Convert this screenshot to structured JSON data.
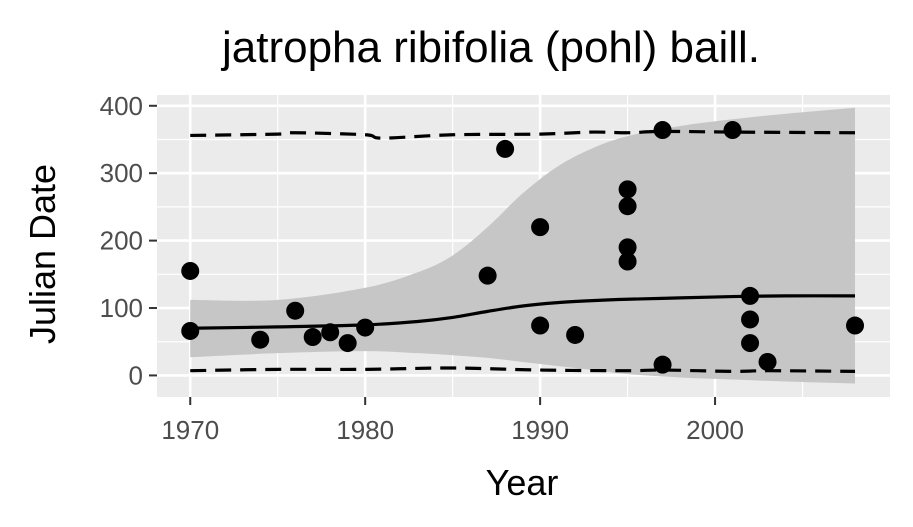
{
  "chart_data": {
    "type": "scatter",
    "title": "jatropha ribifolia (pohl) baill.",
    "xlabel": "Year",
    "ylabel": "Julian Date",
    "xlim": [
      1968.1,
      2010
    ],
    "ylim": [
      -32,
      416
    ],
    "x_ticks": [
      1970,
      1980,
      1990,
      2000
    ],
    "x_tick_labels": [
      "1970",
      "1980",
      "1990",
      "2000"
    ],
    "x_minor_ticks": [
      1975,
      1985,
      1995,
      2005
    ],
    "y_ticks": [
      0,
      100,
      200,
      300,
      400
    ],
    "y_tick_labels": [
      "0",
      "100",
      "200",
      "300",
      "400"
    ],
    "y_minor_ticks": [
      50,
      150,
      250,
      350
    ],
    "grid": true,
    "legend": "none",
    "colors": {
      "panel_background": "#ebebeb",
      "grid": "#ffffff",
      "points": "#000000",
      "fit_line": "#000000",
      "ribbon": "#c6c6c6",
      "tick_label": "#4d4d4d",
      "tick_mark": "#333333"
    },
    "points": [
      {
        "x": 1970,
        "y": 155
      },
      {
        "x": 1970,
        "y": 66
      },
      {
        "x": 1974,
        "y": 53
      },
      {
        "x": 1976,
        "y": 96
      },
      {
        "x": 1977,
        "y": 57
      },
      {
        "x": 1978,
        "y": 64
      },
      {
        "x": 1979,
        "y": 48
      },
      {
        "x": 1980,
        "y": 71
      },
      {
        "x": 1987,
        "y": 148
      },
      {
        "x": 1988,
        "y": 336
      },
      {
        "x": 1990,
        "y": 220
      },
      {
        "x": 1990,
        "y": 74
      },
      {
        "x": 1992,
        "y": 60
      },
      {
        "x": 1995,
        "y": 276
      },
      {
        "x": 1995,
        "y": 251
      },
      {
        "x": 1995,
        "y": 190
      },
      {
        "x": 1995,
        "y": 169
      },
      {
        "x": 1997,
        "y": 364
      },
      {
        "x": 1997,
        "y": 16
      },
      {
        "x": 2001,
        "y": 364
      },
      {
        "x": 2002,
        "y": 118
      },
      {
        "x": 2002,
        "y": 83
      },
      {
        "x": 2002,
        "y": 48
      },
      {
        "x": 2003,
        "y": 20
      },
      {
        "x": 2008,
        "y": 74
      }
    ],
    "fit_line": {
      "x": [
        1970,
        1975,
        1980,
        1983,
        1985,
        1987,
        1989,
        1991,
        1993,
        1995,
        1998,
        2001,
        2004,
        2008
      ],
      "y": [
        70,
        72,
        75,
        80,
        86,
        95,
        103,
        108,
        111,
        113,
        115,
        117,
        118,
        118
      ]
    },
    "ribbon": {
      "x": [
        1970,
        1975,
        1980,
        1983,
        1985,
        1987,
        1989,
        1991,
        1993,
        1995,
        1998,
        2001,
        2004,
        2008
      ],
      "lower": [
        27,
        33,
        36,
        33,
        30,
        26,
        20,
        14,
        8,
        2,
        -3,
        -6,
        -9,
        -12
      ],
      "upper": [
        112,
        112,
        130,
        153,
        178,
        220,
        270,
        310,
        337,
        355,
        370,
        380,
        388,
        397
      ]
    },
    "upper_dashed": {
      "x": [
        1970,
        1975,
        1976,
        1980,
        1981,
        1985,
        1990,
        1993,
        1995,
        1997,
        2001,
        2008
      ],
      "y": [
        356,
        358,
        360,
        357,
        352,
        357,
        358,
        361,
        360,
        362,
        361,
        360
      ]
    },
    "lower_dashed": {
      "x": [
        1970,
        1975,
        1980,
        1985,
        1990,
        1995,
        1997,
        2001,
        2003,
        2008
      ],
      "y": [
        7,
        9,
        9,
        11,
        8,
        7,
        8,
        6,
        7,
        6
      ]
    }
  }
}
